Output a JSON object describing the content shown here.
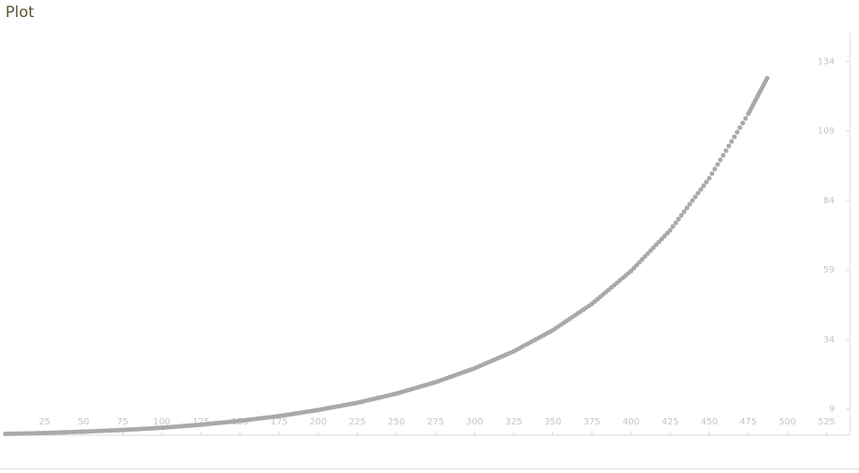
{
  "title": "Plot",
  "chart_data": {
    "type": "scatter",
    "title": "Plot",
    "xlabel": "",
    "ylabel": "",
    "x_ticks": [
      25,
      50,
      75,
      100,
      125,
      150,
      175,
      200,
      225,
      250,
      275,
      300,
      325,
      350,
      375,
      400,
      425,
      450,
      475,
      500,
      525
    ],
    "y_ticks": [
      9,
      34,
      59,
      84,
      109,
      134
    ],
    "xlim": [
      0,
      540
    ],
    "ylim": [
      -0.5,
      144.5
    ],
    "grid": false,
    "marker_color": "#a9a9a9",
    "axis_color": "#d9d9d9",
    "series": [
      {
        "x": [
          0,
          25,
          50,
          75,
          100,
          125,
          150,
          175,
          200,
          225,
          250,
          275,
          300,
          325,
          350,
          375,
          400,
          425,
          450,
          475,
          487
        ],
        "y": [
          0,
          0.3,
          0.8,
          1.4,
          2.2,
          3.3,
          4.7,
          6.4,
          8.6,
          11.2,
          14.5,
          18.6,
          23.6,
          29.7,
          37.3,
          46.8,
          58.6,
          73.3,
          92.0,
          115.2,
          128.0
        ]
      }
    ]
  }
}
